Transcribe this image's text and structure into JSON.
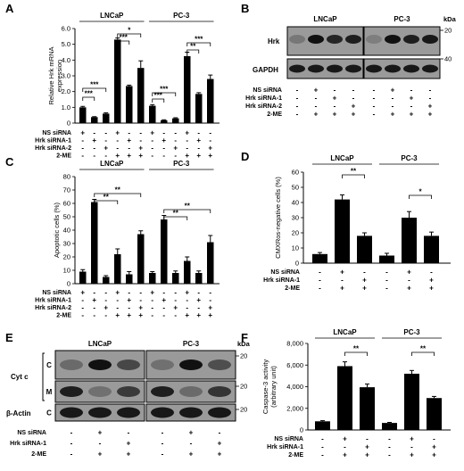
{
  "panels": [
    {
      "id": "A",
      "kind": "chart",
      "letter": "A",
      "ylabel": [
        "Relative Hrk mRNA",
        "expression"
      ],
      "ylim": [
        0,
        6
      ],
      "yticks": [
        "0",
        "1.0",
        "2.0",
        "3.0",
        "4.0",
        "5.0",
        "6.0"
      ],
      "groups": [
        "LNCaP",
        "PC-3"
      ],
      "row_labels": [
        "NS siRNA",
        "Hrk siRNA-1",
        "Hrk siRNA-2",
        "2-ME"
      ],
      "row_values": [
        [
          "+",
          "-",
          "-",
          "+",
          "-",
          "-",
          "+",
          "-",
          "-",
          "+",
          "-",
          "-"
        ],
        [
          "-",
          "+",
          "-",
          "-",
          "+",
          "-",
          "-",
          "+",
          "-",
          "-",
          "+",
          "-"
        ],
        [
          "-",
          "-",
          "+",
          "-",
          "-",
          "+",
          "-",
          "-",
          "+",
          "-",
          "-",
          "+"
        ],
        [
          "-",
          "-",
          "-",
          "+",
          "+",
          "+",
          "-",
          "-",
          "-",
          "+",
          "+",
          "+"
        ]
      ],
      "significance": [
        "***",
        "***",
        "***",
        "*",
        "***",
        "***",
        "**",
        "***"
      ]
    },
    {
      "id": "B",
      "kind": "blot",
      "letter": "B",
      "groups": [
        "LNCaP",
        "PC-3"
      ],
      "blot_rows": [
        "Hrk",
        "GAPDH"
      ],
      "kda_label": "kDa",
      "markers": [
        "20",
        "40"
      ],
      "row_labels": [
        "NS siRNA",
        "Hrk siRNA-1",
        "Hrk siRNA-2",
        "2-ME"
      ],
      "row_values": [
        [
          "-",
          "+",
          "-",
          "-",
          "-",
          "+",
          "-",
          "-"
        ],
        [
          "-",
          "-",
          "+",
          "-",
          "-",
          "-",
          "+",
          "-"
        ],
        [
          "-",
          "-",
          "-",
          "+",
          "-",
          "-",
          "-",
          "+"
        ],
        [
          "-",
          "+",
          "+",
          "+",
          "-",
          "+",
          "+",
          "+"
        ]
      ]
    },
    {
      "id": "C",
      "kind": "chart",
      "letter": "C",
      "ylabel": [
        "Apoptotic cells (%)"
      ],
      "ylim": [
        0,
        80
      ],
      "yticks": [
        "0",
        "10",
        "20",
        "30",
        "40",
        "50",
        "60",
        "70",
        "80"
      ],
      "groups": [
        "LNCaP",
        "PC-3"
      ],
      "row_labels": [
        "NS siRNA",
        "Hrk siRNA-1",
        "Hrk siRNA-2",
        "2-ME"
      ],
      "row_values": [
        [
          "+",
          "-",
          "-",
          "+",
          "-",
          "-",
          "+",
          "-",
          "-",
          "+",
          "-",
          "-"
        ],
        [
          "-",
          "+",
          "-",
          "-",
          "+",
          "-",
          "-",
          "+",
          "-",
          "-",
          "+",
          "-"
        ],
        [
          "-",
          "-",
          "+",
          "-",
          "-",
          "+",
          "-",
          "-",
          "+",
          "-",
          "-",
          "+"
        ],
        [
          "-",
          "-",
          "-",
          "+",
          "+",
          "+",
          "-",
          "-",
          "-",
          "+",
          "+",
          "+"
        ]
      ],
      "significance": [
        "**",
        "**",
        "**",
        "**"
      ]
    },
    {
      "id": "D",
      "kind": "chart",
      "letter": "D",
      "ylabel": [
        "CMXRos-negative cells (%)"
      ],
      "ylim": [
        0,
        60
      ],
      "yticks": [
        "0",
        "10",
        "20",
        "30",
        "40",
        "50",
        "60"
      ],
      "groups": [
        "LNCaP",
        "PC-3"
      ],
      "row_labels": [
        "NS siRNA",
        "Hrk siRNA-1",
        "2-ME"
      ],
      "row_values": [
        [
          "-",
          "+",
          "-",
          "-",
          "+",
          "-"
        ],
        [
          "-",
          "-",
          "+",
          "-",
          "-",
          "+"
        ],
        [
          "-",
          "+",
          "+",
          "-",
          "+",
          "+"
        ]
      ],
      "significance": [
        "**",
        "*"
      ]
    },
    {
      "id": "E",
      "kind": "blot",
      "letter": "E",
      "groups": [
        "LNCaP",
        "PC-3"
      ],
      "cyt_label": "Cyt c",
      "fractions": [
        "C",
        "M",
        "C"
      ],
      "blot_rows": [
        "β-Actin"
      ],
      "kda_label": "kDa",
      "markers": [
        "20",
        "20",
        "20"
      ],
      "row_labels": [
        "NS siRNA",
        "Hrk siRNA-1",
        "2-ME"
      ],
      "row_values": [
        [
          "-",
          "+",
          "-",
          "-",
          "+",
          "-"
        ],
        [
          "-",
          "-",
          "+",
          "-",
          "-",
          "+"
        ],
        [
          "-",
          "+",
          "+",
          "-",
          "+",
          "+"
        ]
      ]
    },
    {
      "id": "F",
      "kind": "chart",
      "letter": "F",
      "ylabel": [
        "Caspase-3 activity",
        "(arbitrary unit)"
      ],
      "ylim": [
        0,
        8000
      ],
      "yticks": [
        "0",
        "2,000",
        "4,000",
        "6,000",
        "8,000"
      ],
      "groups": [
        "LNCaP",
        "PC-3"
      ],
      "row_labels": [
        "NS siRNA",
        "Hrk siRNA-1",
        "2-ME"
      ],
      "row_values": [
        [
          "-",
          "+",
          "-",
          "-",
          "+",
          "-"
        ],
        [
          "-",
          "-",
          "+",
          "-",
          "-",
          "+"
        ],
        [
          "-",
          "+",
          "+",
          "-",
          "+",
          "+"
        ]
      ],
      "significance": [
        "**",
        "**"
      ]
    }
  ],
  "chart_data": [
    {
      "panel": "A",
      "type": "bar",
      "ylabel": "Relative Hrk mRNA expression",
      "ylim": [
        0,
        6
      ],
      "values": [
        1.0,
        0.38,
        0.6,
        5.3,
        2.35,
        3.5,
        1.1,
        0.18,
        0.3,
        4.25,
        1.85,
        2.8
      ],
      "errors": [
        0.06,
        0.03,
        0.05,
        0.1,
        0.06,
        0.45,
        0.07,
        0.03,
        0.04,
        0.25,
        0.08,
        0.25
      ]
    },
    {
      "panel": "C",
      "type": "bar",
      "ylabel": "Apoptotic cells (%)",
      "ylim": [
        0,
        80
      ],
      "values": [
        9,
        61,
        5,
        22,
        7,
        37,
        8,
        48,
        8,
        17,
        8,
        31
      ],
      "errors": [
        1.5,
        2,
        1,
        4,
        2,
        2.5,
        1,
        3,
        1.5,
        3,
        1.5,
        5
      ]
    },
    {
      "panel": "D",
      "type": "bar",
      "ylabel": "CMXRos-negative cells (%)",
      "ylim": [
        0,
        60
      ],
      "values": [
        6,
        42,
        18,
        5,
        30,
        18
      ],
      "errors": [
        1,
        3,
        2,
        1.5,
        4,
        2.5
      ]
    },
    {
      "panel": "F",
      "type": "bar",
      "ylabel": "Caspase-3 activity (arbitrary unit)",
      "ylim": [
        0,
        8000
      ],
      "values": [
        800,
        5900,
        3950,
        650,
        5200,
        2950
      ],
      "errors": [
        60,
        400,
        300,
        50,
        300,
        150
      ]
    }
  ]
}
